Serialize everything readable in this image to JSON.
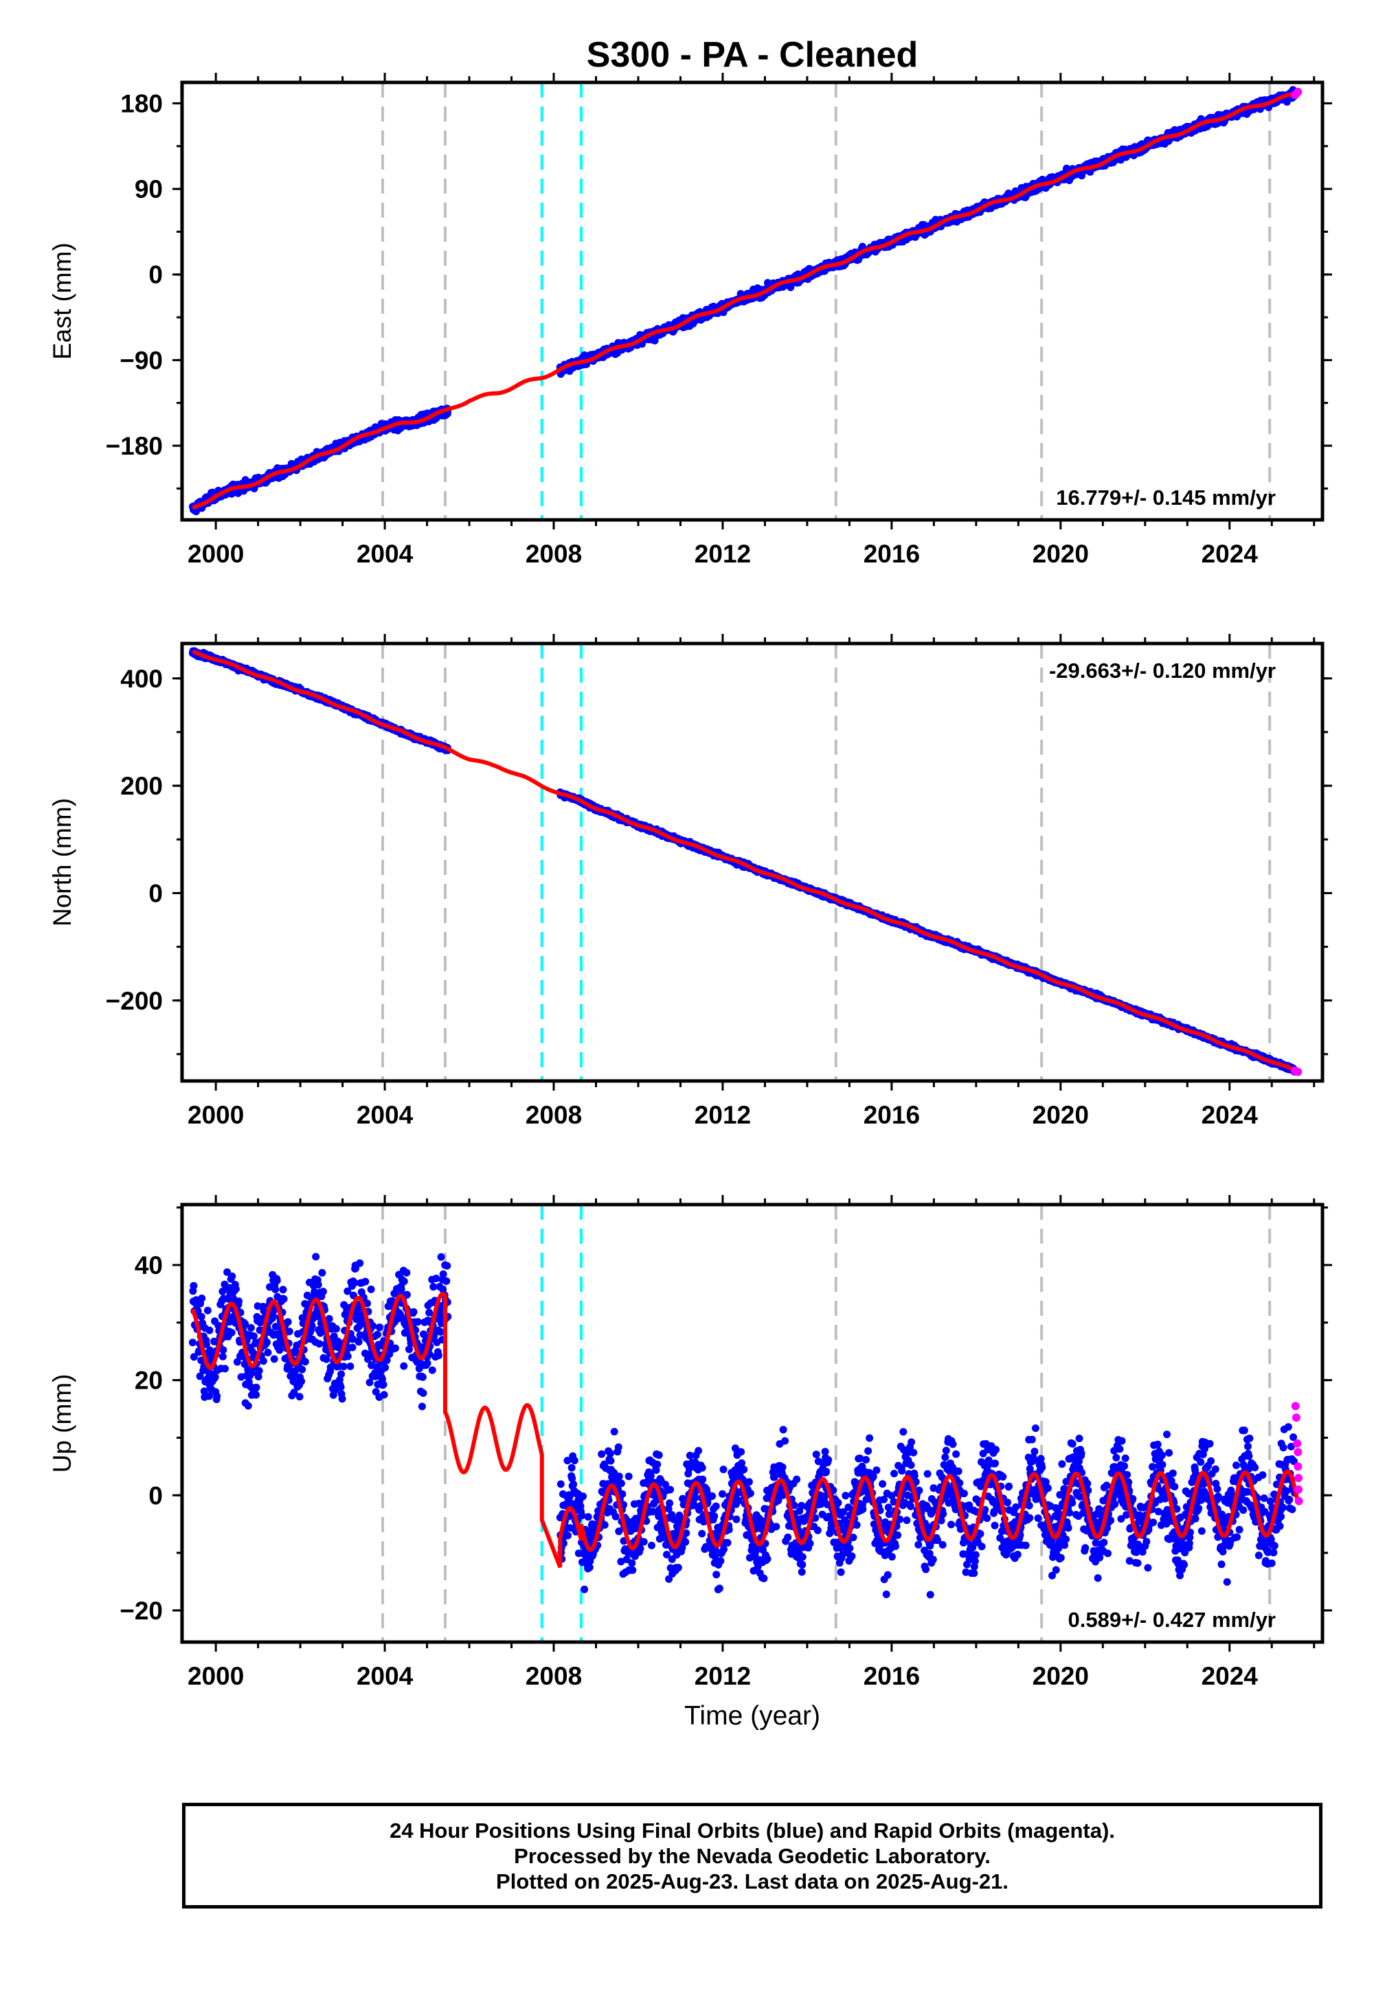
{
  "title": "S300  - PA - Cleaned",
  "colors": {
    "final": "#0000ff",
    "rapid": "#ff00ff",
    "model": "#ff0000",
    "antenna_line": "#bfbfbf",
    "eq_line": "#00ffff",
    "axis": "#000000"
  },
  "caption": [
    "24 Hour Positions Using Final Orbits (blue) and Rapid Orbits (magenta).",
    "Processed by the Nevada Geodetic Laboratory.",
    "Plotted on 2025-Aug-23. Last data on 2025-Aug-21."
  ],
  "chart_data": [
    {
      "type": "scatter",
      "component": "East",
      "ylabel": "East (mm)",
      "xlabel": "",
      "xlim": [
        1999.2,
        2026.2
      ],
      "ylim": [
        -258,
        202
      ],
      "xticks": [
        2000,
        2004,
        2008,
        2012,
        2016,
        2020,
        2024
      ],
      "yticks": [
        -180,
        -90,
        0,
        90,
        180
      ],
      "ytick_labels": [
        "−180",
        "−90",
        "0",
        "90",
        "180"
      ],
      "rate_label": "16.779+/- 0.145 mm/yr",
      "rate_position": "bottom-right",
      "antenna_changes": [
        2003.95,
        2005.43,
        2014.68,
        2019.55,
        2024.95
      ],
      "earthquakes": [
        2007.72,
        2008.65
      ],
      "gaps": [
        [
          2005.5,
          2008.15
        ]
      ],
      "final_series": {
        "name": "Final Orbits",
        "x": [
          1999.45,
          2000.0,
          2001.0,
          2002.0,
          2003.0,
          2003.95,
          2004.6,
          2005.43,
          2008.15,
          2009.0,
          2010.0,
          2011.0,
          2012.0,
          2013.0,
          2014.0,
          2014.68,
          2015.5,
          2016.0,
          2017.0,
          2018.0,
          2019.0,
          2019.55,
          2020.0,
          2021.0,
          2022.0,
          2023.0,
          2024.0,
          2024.95,
          2025.55
        ],
        "y": [
          -247,
          -232,
          -218,
          -200,
          -180,
          -161,
          -156,
          -144,
          -100,
          -86,
          -69,
          -52,
          -34,
          -17,
          0,
          11,
          26,
          35,
          51,
          68,
          84,
          94,
          102,
          118,
          135,
          152,
          168,
          182,
          190
        ],
        "scatter": 3.2
      },
      "rapid_series": {
        "name": "Rapid Orbits",
        "x": [
          2025.55,
          2025.58,
          2025.62
        ],
        "y": [
          189,
          190,
          192
        ]
      },
      "model": {
        "x": [
          1999.45,
          2000.0,
          2001.0,
          2002.0,
          2003.0,
          2003.95,
          2004.6,
          2005.43,
          2006.0,
          2006.7,
          2007.3,
          2007.72,
          2008.15,
          2009.0,
          2010.0,
          2011.0,
          2012.0,
          2013.0,
          2014.0,
          2014.68,
          2015.5,
          2016.0,
          2017.0,
          2018.0,
          2019.0,
          2019.55,
          2020.0,
          2021.0,
          2022.0,
          2023.0,
          2024.0,
          2024.95,
          2025.62
        ],
        "y": [
          -247,
          -232,
          -218,
          -200,
          -180,
          -161,
          -156,
          -144,
          -132,
          -124,
          -114,
          -108,
          -100,
          -86,
          -69,
          -52,
          -34,
          -17,
          0,
          11,
          26,
          35,
          51,
          68,
          84,
          94,
          102,
          118,
          135,
          152,
          168,
          182,
          190
        ],
        "annual_amp": 1.5
      }
    },
    {
      "type": "scatter",
      "component": "North",
      "ylabel": "North (mm)",
      "xlabel": "",
      "xlim": [
        1999.2,
        2026.2
      ],
      "ylim": [
        -350,
        465
      ],
      "xticks": [
        2000,
        2004,
        2008,
        2012,
        2016,
        2020,
        2024
      ],
      "yticks": [
        -200,
        0,
        200,
        400
      ],
      "ytick_labels": [
        "−200",
        "0",
        "200",
        "400"
      ],
      "rate_label": "-29.663+/- 0.120 mm/yr",
      "rate_position": "top-right",
      "antenna_changes": [
        2003.95,
        2005.43,
        2014.68,
        2019.55,
        2024.95
      ],
      "earthquakes": [
        2007.72,
        2008.65
      ],
      "gaps": [
        [
          2005.5,
          2008.15
        ]
      ],
      "final_series": {
        "name": "Final Orbits",
        "x": [
          1999.45,
          2000.0,
          2001.0,
          2002.0,
          2003.0,
          2003.95,
          2004.6,
          2005.43,
          2008.15,
          2008.65,
          2009.0,
          2010.0,
          2011.0,
          2012.0,
          2013.0,
          2014.0,
          2015.0,
          2016.0,
          2017.0,
          2018.0,
          2019.0,
          2019.55,
          2020.0,
          2021.0,
          2022.0,
          2023.0,
          2024.0,
          2024.95,
          2025.55
        ],
        "y": [
          449,
          436,
          406,
          377,
          347,
          315,
          294,
          270,
          185,
          172,
          158,
          127,
          97,
          68,
          38,
          8,
          -21,
          -51,
          -80,
          -108,
          -137,
          -153,
          -167,
          -196,
          -226,
          -255,
          -285,
          -312,
          -330
        ],
        "scatter": 2.8
      },
      "rapid_series": {
        "name": "Rapid Orbits",
        "x": [
          2025.55,
          2025.58,
          2025.62
        ],
        "y": [
          -331,
          -332,
          -333
        ]
      },
      "model": {
        "x": [
          1999.45,
          2000.0,
          2001.0,
          2002.0,
          2003.0,
          2003.95,
          2004.6,
          2005.43,
          2006.0,
          2006.7,
          2007.3,
          2007.72,
          2008.15,
          2008.65,
          2009.0,
          2010.0,
          2011.0,
          2012.0,
          2013.0,
          2014.0,
          2015.0,
          2016.0,
          2017.0,
          2018.0,
          2019.0,
          2019.55,
          2020.0,
          2021.0,
          2022.0,
          2023.0,
          2024.0,
          2024.95,
          2025.62
        ],
        "y": [
          449,
          436,
          406,
          377,
          347,
          315,
          294,
          270,
          250,
          235,
          216,
          200,
          185,
          172,
          158,
          127,
          97,
          68,
          38,
          8,
          -21,
          -51,
          -80,
          -108,
          -137,
          -153,
          -167,
          -196,
          -226,
          -255,
          -285,
          -312,
          -333
        ],
        "annual_amp": 1.5
      }
    },
    {
      "type": "scatter",
      "component": "Up",
      "ylabel": "Up (mm)",
      "xlabel": "Time (year)",
      "xlim": [
        1999.2,
        2026.2
      ],
      "ylim": [
        -25.5,
        50.5
      ],
      "xticks": [
        2000,
        2004,
        2008,
        2012,
        2016,
        2020,
        2024
      ],
      "yticks": [
        -20,
        0,
        20,
        40
      ],
      "ytick_labels": [
        "−20",
        "0",
        "20",
        "40"
      ],
      "rate_label": "0.589+/- 0.427 mm/yr",
      "rate_position": "bottom-right",
      "antenna_changes": [
        2003.95,
        2005.43,
        2014.68,
        2019.55,
        2024.95
      ],
      "earthquakes": [
        2007.72,
        2008.65
      ],
      "gaps": [
        [
          2005.5,
          2008.15
        ]
      ],
      "final_series": {
        "name": "Final Orbits",
        "x": [
          1999.45,
          2003.95,
          2005.43,
          2008.15,
          2008.65,
          2014.68,
          2019.55,
          2024.95,
          2025.55
        ],
        "y": [
          27.5,
          28.5,
          29.5,
          -6.8,
          -3.5,
          -2.5,
          -1.8,
          -1.5,
          -1.3
        ],
        "scatter": 5.0,
        "annual_amp": 5.5
      },
      "rapid_series": {
        "name": "Rapid Orbits",
        "x": [
          2025.56,
          2025.58,
          2025.6,
          2025.62,
          2025.62,
          2025.63,
          2025.63,
          2025.64
        ],
        "y": [
          15.5,
          13.5,
          9.0,
          7.5,
          5.0,
          3.0,
          1.0,
          -1.0
        ]
      },
      "model_segments": [
        {
          "x0": 1999.45,
          "x1": 2005.43,
          "base_x": [
            1999.45,
            2005.43
          ],
          "base_y": [
            27.5,
            29.5
          ],
          "amp": 5.5
        },
        {
          "x0": 2005.43,
          "x1": 2007.72,
          "base_x": [
            2005.43,
            2007.72
          ],
          "base_y": [
            9.3,
            10.3
          ],
          "amp": 5.5
        },
        {
          "x0": 2007.72,
          "x1": 2008.15,
          "base_x": [
            2007.72,
            2008.15
          ],
          "base_y": [
            -4.3,
            -12.5
          ],
          "amp": 0.0
        },
        {
          "x0": 2008.15,
          "x1": 2008.65,
          "base_x": [
            2008.15,
            2008.65
          ],
          "base_y": [
            -8.5,
            -6.8
          ],
          "amp": 5.5
        },
        {
          "x0": 2008.65,
          "x1": 2025.62,
          "base_x": [
            2008.65,
            2014.68,
            2019.55,
            2024.95,
            2025.62
          ],
          "base_y": [
            -4.0,
            -2.6,
            -1.8,
            -1.5,
            -1.3
          ],
          "amp": 5.5
        }
      ]
    }
  ]
}
